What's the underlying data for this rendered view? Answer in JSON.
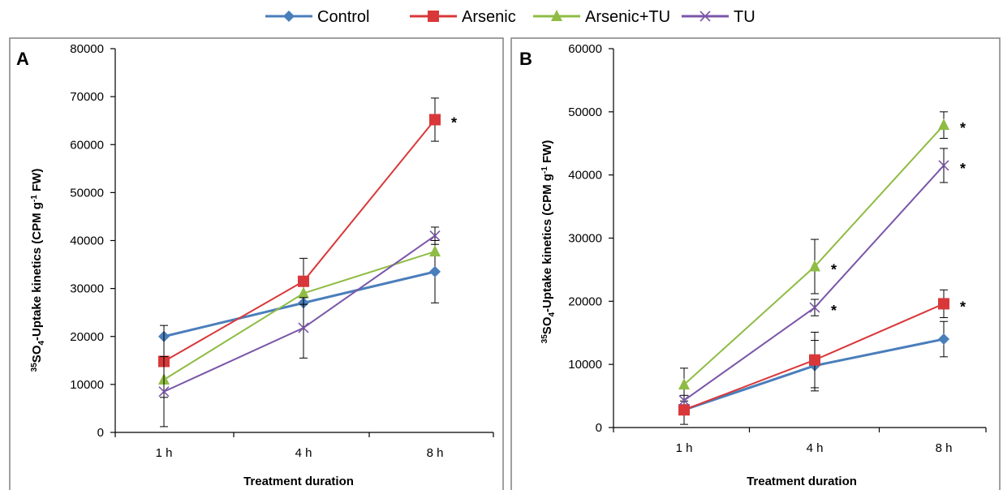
{
  "legend": [
    {
      "name": "Control",
      "color": "#4a7ebb",
      "marker": "diamond"
    },
    {
      "name": "Arsenic",
      "color": "#d9383a",
      "marker": "square"
    },
    {
      "name": "Arsenic+TU",
      "color": "#8fbc44",
      "marker": "triangle"
    },
    {
      "name": "TU",
      "color": "#7a56a8",
      "marker": "x"
    }
  ],
  "chart_data": [
    {
      "type": "line",
      "panel_label": "A",
      "xlabel": "Treatment duration",
      "ylabel_prefix": "35",
      "ylabel_so": "SO",
      "ylabel_sub": "4",
      "ylabel_mid": "-Uptake  kinetics (CPM g",
      "ylabel_sup": "-1",
      "ylabel_end": " FW)",
      "categories": [
        "1 h",
        "4 h",
        "8 h"
      ],
      "ylim": [
        0,
        80000
      ],
      "yticks": [
        "0",
        "10000",
        "20000",
        "30000",
        "40000",
        "50000",
        "60000",
        "70000",
        "80000"
      ],
      "series": [
        {
          "name": "Control",
          "values": [
            20000,
            27000,
            33500
          ],
          "err": [
            null,
            null,
            6500
          ]
        },
        {
          "name": "Arsenic",
          "values": [
            14800,
            31500,
            65200
          ],
          "err": [
            7500,
            4800,
            4500
          ]
        },
        {
          "name": "Arsenic+TU",
          "values": [
            11000,
            29000,
            37700
          ],
          "err": [
            null,
            null,
            null
          ]
        },
        {
          "name": "TU",
          "values": [
            8500,
            21800,
            41000
          ],
          "err": [
            7300,
            6300,
            1800
          ]
        }
      ],
      "annotations": [
        {
          "text": "*",
          "series": "Arsenic",
          "index": 2
        }
      ]
    },
    {
      "type": "line",
      "panel_label": "B",
      "xlabel": "Treatment duration",
      "ylabel_prefix": "35",
      "ylabel_so": "SO",
      "ylabel_sub": "4",
      "ylabel_mid": "-Uptake  kinetics (CPM g",
      "ylabel_sup": "-1",
      "ylabel_end": " FW)",
      "categories": [
        "1 h",
        "4 h",
        "8 h"
      ],
      "ylim": [
        0,
        60000
      ],
      "yticks": [
        "0",
        "10000",
        "20000",
        "30000",
        "40000",
        "50000",
        "60000"
      ],
      "series": [
        {
          "name": "Control",
          "values": [
            2800,
            9800,
            14000
          ],
          "err": [
            null,
            4000,
            2800
          ]
        },
        {
          "name": "Arsenic",
          "values": [
            2800,
            10700,
            19600
          ],
          "err": [
            2300,
            4400,
            2200
          ]
        },
        {
          "name": "Arsenic+TU",
          "values": [
            6800,
            25500,
            47900
          ],
          "err": [
            2600,
            4300,
            2100
          ]
        },
        {
          "name": "TU",
          "values": [
            4300,
            19000,
            41500
          ],
          "err": [
            null,
            1300,
            2700
          ]
        }
      ],
      "annotations": [
        {
          "text": "*",
          "series": "Arsenic+TU",
          "index": 1
        },
        {
          "text": "*",
          "series": "TU",
          "index": 1
        },
        {
          "text": "*",
          "series": "Arsenic+TU",
          "index": 2
        },
        {
          "text": "*",
          "series": "TU",
          "index": 2
        },
        {
          "text": "*",
          "series": "Arsenic",
          "index": 2
        }
      ]
    }
  ]
}
